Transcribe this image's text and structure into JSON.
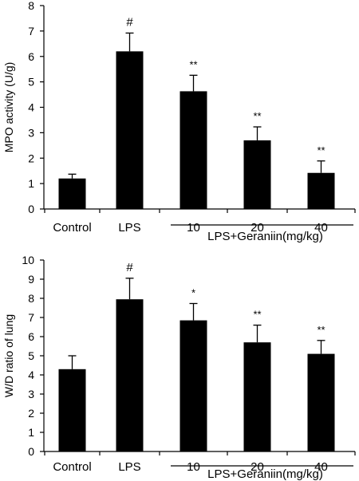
{
  "chart_data": [
    {
      "type": "bar",
      "ylabel": "MPO activity (U/g)",
      "ylim": [
        0,
        8
      ],
      "yticks": [
        0,
        1,
        2,
        3,
        4,
        5,
        6,
        7,
        8
      ],
      "categories": [
        "Control",
        "LPS",
        "10",
        "20",
        "40"
      ],
      "values": [
        1.2,
        6.2,
        4.63,
        2.7,
        1.42
      ],
      "errors": [
        0.17,
        0.72,
        0.63,
        0.53,
        0.47
      ],
      "significance": [
        "",
        "#",
        "**",
        "**",
        "**"
      ],
      "group_label": "LPS+Geraniin(mg/kg)",
      "group_categories": [
        2,
        3,
        4
      ],
      "grid": false,
      "legend": "none"
    },
    {
      "type": "bar",
      "ylabel": "W/D ratio of lung",
      "ylim": [
        0,
        10
      ],
      "yticks": [
        0,
        1,
        2,
        3,
        4,
        5,
        6,
        7,
        8,
        9,
        10
      ],
      "categories": [
        "Control",
        "LPS",
        "10",
        "20",
        "40"
      ],
      "values": [
        4.3,
        7.95,
        6.85,
        5.7,
        5.1
      ],
      "errors": [
        0.7,
        1.1,
        0.88,
        0.9,
        0.7
      ],
      "significance": [
        "",
        "#",
        "*",
        "**",
        "**"
      ],
      "group_label": "LPS+Geraniin(mg/kg)",
      "group_categories": [
        2,
        3,
        4
      ],
      "grid": false,
      "legend": "none"
    }
  ]
}
